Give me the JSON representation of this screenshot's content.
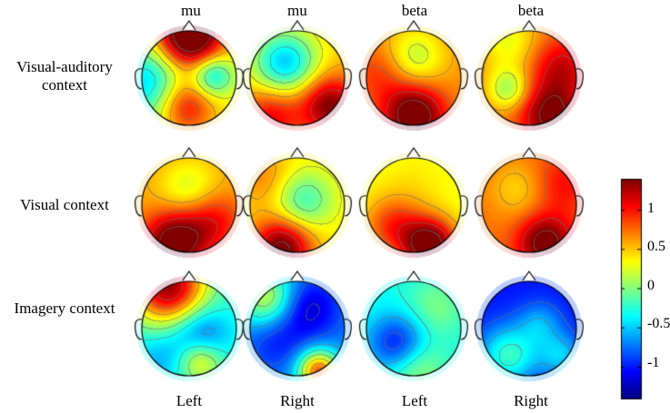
{
  "column_headers_top": [
    "mu",
    "mu",
    "beta",
    "beta"
  ],
  "column_headers_bottom": [
    "Left",
    "Right",
    "Left",
    "Right"
  ],
  "row_labels": [
    [
      "Visual-auditory",
      "context"
    ],
    [
      "Visual context"
    ],
    [
      "Imagery context"
    ]
  ],
  "colorbar": {
    "ticks": [
      "1",
      "0.5",
      "0",
      "-0.5",
      "-1"
    ],
    "tick_values": [
      1,
      0.5,
      0,
      -0.5,
      -1
    ],
    "range": [
      -1.4,
      1.4
    ]
  },
  "maps": [
    [
      {
        "base": 0.35,
        "blobs": [
          [
            0.5,
            0.1,
            1.6,
            0.22
          ],
          [
            0.15,
            0.55,
            -0.9,
            0.28
          ],
          [
            0.72,
            0.47,
            -0.8,
            0.14
          ],
          [
            0.45,
            0.75,
            0.9,
            0.2
          ]
        ]
      },
      {
        "base": 0.5,
        "blobs": [
          [
            0.38,
            0.35,
            -1.0,
            0.22
          ],
          [
            0.8,
            0.75,
            0.9,
            0.2
          ],
          [
            0.25,
            0.85,
            0.6,
            0.2
          ]
        ]
      },
      {
        "base": 0.65,
        "blobs": [
          [
            0.5,
            0.3,
            -0.5,
            0.2
          ],
          [
            0.5,
            0.85,
            1.0,
            0.2
          ],
          [
            0.2,
            0.45,
            0.3,
            0.2
          ]
        ]
      },
      {
        "base": 0.7,
        "blobs": [
          [
            0.3,
            0.15,
            -0.4,
            0.2
          ],
          [
            0.3,
            0.6,
            -0.6,
            0.14
          ],
          [
            0.7,
            0.85,
            0.8,
            0.2
          ],
          [
            0.8,
            0.4,
            0.5,
            0.2
          ]
        ]
      }
    ],
    [
      {
        "base": 0.6,
        "blobs": [
          [
            0.5,
            0.35,
            -0.4,
            0.2
          ],
          [
            0.35,
            0.85,
            1.0,
            0.2
          ],
          [
            0.7,
            0.65,
            0.5,
            0.2
          ]
        ]
      },
      {
        "base": 0.4,
        "blobs": [
          [
            0.55,
            0.45,
            -0.6,
            0.2
          ],
          [
            0.35,
            0.9,
            1.1,
            0.2
          ],
          [
            0.2,
            0.25,
            0.3,
            0.2
          ]
        ]
      },
      {
        "base": 0.3,
        "blobs": [
          [
            0.65,
            0.88,
            1.3,
            0.18
          ],
          [
            0.3,
            0.7,
            0.6,
            0.2
          ],
          [
            0.5,
            0.3,
            0.1,
            0.25
          ]
        ]
      },
      {
        "base": 0.75,
        "blobs": [
          [
            0.65,
            0.85,
            0.8,
            0.18
          ],
          [
            0.4,
            0.35,
            -0.3,
            0.2
          ],
          [
            0.8,
            0.3,
            0.3,
            0.2
          ]
        ]
      }
    ],
    [
      {
        "base": -0.25,
        "blobs": [
          [
            0.3,
            0.1,
            1.6,
            0.25
          ],
          [
            0.6,
            0.55,
            -0.6,
            0.2
          ],
          [
            0.6,
            0.8,
            0.7,
            0.15
          ],
          [
            0.2,
            0.8,
            -0.3,
            0.2
          ]
        ]
      },
      {
        "base": -0.7,
        "blobs": [
          [
            0.2,
            0.2,
            0.9,
            0.2
          ],
          [
            0.7,
            0.9,
            1.5,
            0.14
          ],
          [
            0.6,
            0.3,
            -0.5,
            0.2
          ],
          [
            0.3,
            0.6,
            -0.3,
            0.2
          ]
        ]
      },
      {
        "base": -0.3,
        "blobs": [
          [
            0.35,
            0.65,
            -0.8,
            0.2
          ],
          [
            0.7,
            0.3,
            0.3,
            0.2
          ],
          [
            0.5,
            0.85,
            0.5,
            0.2
          ]
        ]
      },
      {
        "base": -1.0,
        "blobs": [
          [
            0.3,
            0.75,
            0.8,
            0.2
          ],
          [
            0.6,
            0.45,
            0.4,
            0.15
          ],
          [
            0.8,
            0.75,
            0.5,
            0.15
          ]
        ]
      }
    ]
  ]
}
